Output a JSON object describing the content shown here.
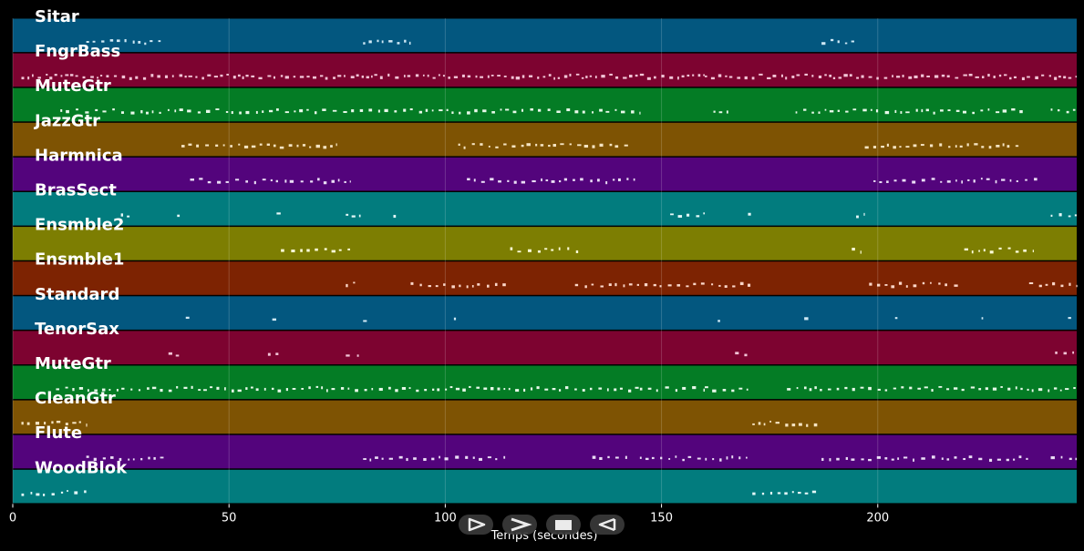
{
  "chart_data": {
    "type": "piano-roll",
    "xlabel": "Temps (secondes)",
    "x_ticks": [
      0,
      50,
      100,
      150,
      200
    ],
    "xlim": [
      0,
      246
    ],
    "grid": true,
    "tracks": [
      {
        "name": "Sitar",
        "color": "#03577f",
        "note_color": "#cfe8f5",
        "notes": [
          [
            17,
            35,
            0.5
          ],
          [
            81,
            92,
            0.5
          ],
          [
            187,
            196,
            0.5
          ]
        ]
      },
      {
        "name": "FngrBass",
        "color": "#7d0330",
        "note_color": "#f2c4d6",
        "notes": [
          [
            2,
            145,
            0.7
          ],
          [
            145,
            160,
            0.6
          ],
          [
            160,
            246,
            0.7
          ]
        ]
      },
      {
        "name": "MuteGtr",
        "color": "#047c25",
        "note_color": "#e7f8e9",
        "notes": [
          [
            11,
            145,
            0.4
          ],
          [
            162,
            166,
            0.4
          ],
          [
            181,
            234,
            0.4
          ],
          [
            240,
            246,
            0.4
          ]
        ]
      },
      {
        "name": "JazzGtr",
        "color": "#7e5303",
        "note_color": "#f5e4c2",
        "notes": [
          [
            39,
            75,
            0.5
          ],
          [
            103,
            143,
            0.5
          ],
          [
            197,
            233,
            0.5
          ]
        ]
      },
      {
        "name": "Harmnica",
        "color": "#53047c",
        "note_color": "#eaddf5",
        "notes": [
          [
            41,
            78,
            0.4
          ],
          [
            105,
            144,
            0.4
          ],
          [
            199,
            237,
            0.4
          ]
        ]
      },
      {
        "name": "BrasSect",
        "color": "#027c7e",
        "note_color": "#e4f8f8",
        "notes": [
          [
            25,
            27,
            0.4
          ],
          [
            38,
            39,
            0.4
          ],
          [
            61,
            62,
            0.4
          ],
          [
            77,
            81,
            0.4
          ],
          [
            88,
            89,
            0.4
          ],
          [
            152,
            160,
            0.4
          ],
          [
            170,
            171,
            0.4
          ],
          [
            195,
            197,
            0.4
          ],
          [
            240,
            246,
            0.4
          ]
        ]
      },
      {
        "name": "Ensmble2",
        "color": "#7d7e02",
        "note_color": "#fbfbd6",
        "notes": [
          [
            62,
            78,
            0.4
          ],
          [
            115,
            131,
            0.4
          ],
          [
            194,
            196,
            0.4
          ],
          [
            220,
            236,
            0.4
          ]
        ]
      },
      {
        "name": "Ensmble1",
        "color": "#7d2302",
        "note_color": "#fbd6c8",
        "notes": [
          [
            77,
            80,
            0.4
          ],
          [
            92,
            114,
            0.4
          ],
          [
            130,
            171,
            0.4
          ],
          [
            198,
            220,
            0.4
          ],
          [
            235,
            246,
            0.4
          ]
        ]
      },
      {
        "name": "Standard",
        "color": "#03577f",
        "note_color": "#cfe8f5",
        "notes": [
          [
            40,
            41,
            0.4
          ],
          [
            60,
            61,
            0.4
          ],
          [
            81,
            82,
            0.4
          ],
          [
            102,
            103,
            0.4
          ],
          [
            163,
            164,
            0.4
          ],
          [
            183,
            184,
            0.4
          ],
          [
            204,
            205,
            0.4
          ],
          [
            224,
            225,
            0.4
          ],
          [
            244,
            245,
            0.4
          ]
        ]
      },
      {
        "name": "TenorSax",
        "color": "#7d0330",
        "note_color": "#f2c4d6",
        "notes": [
          [
            36,
            39,
            0.4
          ],
          [
            59,
            62,
            0.4
          ],
          [
            77,
            81,
            0.2
          ],
          [
            167,
            170,
            0.4
          ],
          [
            241,
            246,
            0.4
          ]
        ]
      },
      {
        "name": "MuteGtr",
        "color": "#047c25",
        "note_color": "#e7f8e9",
        "notes": [
          [
            10,
            145,
            0.5
          ],
          [
            145,
            160,
            0.3
          ],
          [
            160,
            171,
            0.5
          ],
          [
            179,
            246,
            0.5
          ]
        ]
      },
      {
        "name": "CleanGtr",
        "color": "#7e5303",
        "note_color": "#f5e4c2",
        "notes": [
          [
            2,
            17,
            0.5
          ],
          [
            171,
            186,
            0.5
          ]
        ]
      },
      {
        "name": "Flute",
        "color": "#53047c",
        "note_color": "#eaddf5",
        "notes": [
          [
            17,
            35,
            0.4
          ],
          [
            81,
            114,
            0.4
          ],
          [
            134,
            143,
            0.4
          ],
          [
            145,
            170,
            0.5
          ],
          [
            187,
            235,
            0.4
          ],
          [
            240,
            246,
            0.4
          ]
        ]
      },
      {
        "name": "WoodBlok",
        "color": "#027c7e",
        "note_color": "#e4f8f8",
        "notes": [
          [
            2,
            17,
            0.4
          ],
          [
            171,
            186,
            0.4
          ]
        ]
      }
    ]
  },
  "controls": [
    {
      "name": "first-play",
      "icon": "play-outline-icon"
    },
    {
      "name": "next",
      "icon": "chevron-right-icon"
    },
    {
      "name": "stop",
      "icon": "stop-icon"
    },
    {
      "name": "previous",
      "icon": "triangle-left-icon"
    }
  ]
}
